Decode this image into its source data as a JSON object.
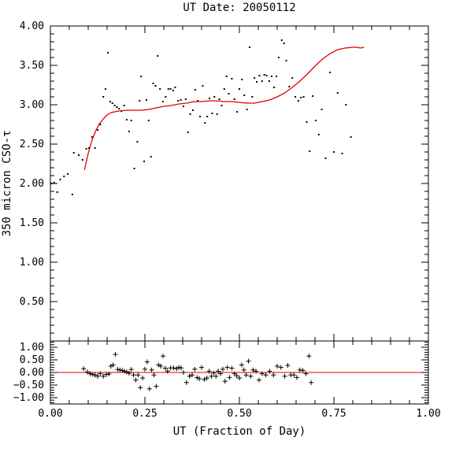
{
  "chart_data": [
    {
      "type": "scatter",
      "title": "UT Date: 20050112",
      "ylabel": "350 micron CSO-τ",
      "xlim": [
        0,
        1
      ],
      "ylim": [
        0,
        4
      ],
      "y_ticks": [
        "4.00",
        "3.50",
        "3.00",
        "2.50",
        "2.00",
        "1.50",
        "1.00",
        "0.50"
      ],
      "x_ticks": [
        "0.00",
        "0.25",
        "0.50",
        "0.75",
        "1.00"
      ],
      "grid": false,
      "points": [
        [
          0.003,
          2.0
        ],
        [
          0.01,
          2.01
        ],
        [
          0.018,
          1.89
        ],
        [
          0.026,
          2.05
        ],
        [
          0.036,
          2.09
        ],
        [
          0.046,
          2.12
        ],
        [
          0.058,
          1.86
        ],
        [
          0.062,
          2.39
        ],
        [
          0.075,
          2.36
        ],
        [
          0.085,
          2.3
        ],
        [
          0.095,
          2.44
        ],
        [
          0.102,
          2.45
        ],
        [
          0.11,
          2.59
        ],
        [
          0.118,
          2.45
        ],
        [
          0.125,
          2.68
        ],
        [
          0.132,
          2.75
        ],
        [
          0.14,
          3.1
        ],
        [
          0.146,
          3.2
        ],
        [
          0.152,
          3.66
        ],
        [
          0.158,
          3.04
        ],
        [
          0.164,
          3.02
        ],
        [
          0.17,
          2.99
        ],
        [
          0.176,
          2.97
        ],
        [
          0.182,
          2.95
        ],
        [
          0.188,
          2.92
        ],
        [
          0.195,
          2.99
        ],
        [
          0.202,
          2.81
        ],
        [
          0.208,
          2.66
        ],
        [
          0.214,
          2.8
        ],
        [
          0.222,
          2.19
        ],
        [
          0.23,
          2.53
        ],
        [
          0.236,
          3.05
        ],
        [
          0.24,
          3.36
        ],
        [
          0.248,
          2.28
        ],
        [
          0.254,
          3.06
        ],
        [
          0.26,
          2.8
        ],
        [
          0.266,
          2.34
        ],
        [
          0.272,
          3.27
        ],
        [
          0.278,
          3.24
        ],
        [
          0.284,
          3.62
        ],
        [
          0.29,
          3.2
        ],
        [
          0.298,
          3.04
        ],
        [
          0.305,
          3.1
        ],
        [
          0.312,
          3.2
        ],
        [
          0.318,
          3.2
        ],
        [
          0.325,
          3.18
        ],
        [
          0.33,
          3.22
        ],
        [
          0.338,
          3.05
        ],
        [
          0.345,
          3.06
        ],
        [
          0.352,
          2.98
        ],
        [
          0.358,
          3.07
        ],
        [
          0.364,
          2.65
        ],
        [
          0.37,
          2.88
        ],
        [
          0.377,
          2.93
        ],
        [
          0.383,
          3.19
        ],
        [
          0.39,
          3.05
        ],
        [
          0.396,
          2.85
        ],
        [
          0.403,
          3.24
        ],
        [
          0.409,
          2.77
        ],
        [
          0.415,
          2.85
        ],
        [
          0.421,
          3.08
        ],
        [
          0.428,
          2.89
        ],
        [
          0.434,
          3.1
        ],
        [
          0.441,
          2.88
        ],
        [
          0.447,
          3.07
        ],
        [
          0.453,
          2.99
        ],
        [
          0.46,
          3.2
        ],
        [
          0.466,
          3.36
        ],
        [
          0.472,
          3.14
        ],
        [
          0.48,
          3.33
        ],
        [
          0.487,
          3.07
        ],
        [
          0.494,
          2.91
        ],
        [
          0.5,
          3.2
        ],
        [
          0.507,
          3.32
        ],
        [
          0.513,
          3.12
        ],
        [
          0.52,
          2.94
        ],
        [
          0.527,
          3.73
        ],
        [
          0.534,
          3.1
        ],
        [
          0.54,
          3.34
        ],
        [
          0.546,
          3.29
        ],
        [
          0.553,
          3.37
        ],
        [
          0.56,
          3.3
        ],
        [
          0.566,
          3.38
        ],
        [
          0.572,
          3.37
        ],
        [
          0.579,
          3.3
        ],
        [
          0.585,
          3.36
        ],
        [
          0.592,
          3.22
        ],
        [
          0.598,
          3.36
        ],
        [
          0.604,
          3.6
        ],
        [
          0.612,
          3.82
        ],
        [
          0.618,
          3.78
        ],
        [
          0.624,
          3.56
        ],
        [
          0.632,
          3.23
        ],
        [
          0.64,
          3.34
        ],
        [
          0.648,
          3.1
        ],
        [
          0.656,
          3.05
        ],
        [
          0.663,
          3.09
        ],
        [
          0.67,
          3.1
        ],
        [
          0.678,
          2.78
        ],
        [
          0.686,
          2.41
        ],
        [
          0.694,
          3.11
        ],
        [
          0.702,
          2.8
        ],
        [
          0.71,
          2.62
        ],
        [
          0.718,
          2.94
        ],
        [
          0.728,
          2.32
        ],
        [
          0.74,
          3.41
        ],
        [
          0.75,
          2.4
        ],
        [
          0.76,
          3.15
        ],
        [
          0.772,
          2.38
        ],
        [
          0.782,
          3.0
        ],
        [
          0.795,
          2.59
        ]
      ],
      "fit_curve": [
        [
          0.09,
          2.17
        ],
        [
          0.1,
          2.38
        ],
        [
          0.11,
          2.55
        ],
        [
          0.12,
          2.67
        ],
        [
          0.13,
          2.76
        ],
        [
          0.14,
          2.82
        ],
        [
          0.15,
          2.87
        ],
        [
          0.16,
          2.9
        ],
        [
          0.18,
          2.92
        ],
        [
          0.2,
          2.93
        ],
        [
          0.22,
          2.93
        ],
        [
          0.24,
          2.93
        ],
        [
          0.26,
          2.94
        ],
        [
          0.28,
          2.96
        ],
        [
          0.3,
          2.98
        ],
        [
          0.32,
          2.99
        ],
        [
          0.34,
          3.01
        ],
        [
          0.36,
          3.02
        ],
        [
          0.38,
          3.04
        ],
        [
          0.4,
          3.04
        ],
        [
          0.42,
          3.05
        ],
        [
          0.44,
          3.05
        ],
        [
          0.46,
          3.04
        ],
        [
          0.48,
          3.04
        ],
        [
          0.5,
          3.03
        ],
        [
          0.52,
          3.02
        ],
        [
          0.54,
          3.02
        ],
        [
          0.56,
          3.04
        ],
        [
          0.58,
          3.06
        ],
        [
          0.6,
          3.1
        ],
        [
          0.62,
          3.15
        ],
        [
          0.64,
          3.22
        ],
        [
          0.66,
          3.3
        ],
        [
          0.68,
          3.39
        ],
        [
          0.7,
          3.49
        ],
        [
          0.72,
          3.58
        ],
        [
          0.74,
          3.65
        ],
        [
          0.76,
          3.7
        ],
        [
          0.78,
          3.72
        ],
        [
          0.8,
          3.73
        ],
        [
          0.81,
          3.73
        ],
        [
          0.82,
          3.72
        ],
        [
          0.83,
          3.73
        ]
      ],
      "fit_color": "#e00000",
      "marker": "dot"
    },
    {
      "type": "scatter",
      "panel": "residuals",
      "xlabel": "UT (Fraction of Day)",
      "xlim": [
        0,
        1
      ],
      "ylim": [
        -1.25,
        1.25
      ],
      "y_ticks": [
        "1.00",
        "0.50",
        "0.00",
        "−0.50",
        "−1.00"
      ],
      "x_ticks": [
        "0.00",
        "0.25",
        "0.50",
        "0.75",
        "1.00"
      ],
      "zero_line_color": "#e00000",
      "marker": "plus",
      "points": [
        [
          0.088,
          0.15
        ],
        [
          0.098,
          0.02
        ],
        [
          0.105,
          -0.05
        ],
        [
          0.112,
          -0.08
        ],
        [
          0.118,
          -0.1
        ],
        [
          0.125,
          -0.15
        ],
        [
          0.132,
          -0.05
        ],
        [
          0.14,
          -0.15
        ],
        [
          0.148,
          -0.08
        ],
        [
          0.155,
          -0.06
        ],
        [
          0.16,
          0.25
        ],
        [
          0.166,
          0.3
        ],
        [
          0.172,
          0.72
        ],
        [
          0.178,
          0.12
        ],
        [
          0.184,
          0.1
        ],
        [
          0.19,
          0.08
        ],
        [
          0.196,
          0.05
        ],
        [
          0.202,
          0.02
        ],
        [
          0.208,
          -0.03
        ],
        [
          0.214,
          0.12
        ],
        [
          0.22,
          -0.1
        ],
        [
          0.226,
          -0.3
        ],
        [
          0.232,
          -0.1
        ],
        [
          0.238,
          -0.6
        ],
        [
          0.244,
          -0.22
        ],
        [
          0.25,
          0.13
        ],
        [
          0.256,
          0.42
        ],
        [
          0.262,
          -0.65
        ],
        [
          0.268,
          0.1
        ],
        [
          0.274,
          -0.1
        ],
        [
          0.28,
          -0.55
        ],
        [
          0.286,
          0.3
        ],
        [
          0.292,
          0.25
        ],
        [
          0.298,
          0.65
        ],
        [
          0.304,
          0.17
        ],
        [
          0.31,
          0.05
        ],
        [
          0.318,
          0.18
        ],
        [
          0.326,
          0.18
        ],
        [
          0.334,
          0.15
        ],
        [
          0.34,
          0.2
        ],
        [
          0.346,
          0.18
        ],
        [
          0.352,
          0.0
        ],
        [
          0.36,
          -0.4
        ],
        [
          0.368,
          -0.15
        ],
        [
          0.375,
          -0.1
        ],
        [
          0.382,
          0.13
        ],
        [
          0.388,
          -0.2
        ],
        [
          0.394,
          -0.25
        ],
        [
          0.4,
          0.2
        ],
        [
          0.407,
          -0.28
        ],
        [
          0.414,
          -0.22
        ],
        [
          0.42,
          0.05
        ],
        [
          0.426,
          -0.15
        ],
        [
          0.432,
          -0.02
        ],
        [
          0.438,
          -0.15
        ],
        [
          0.444,
          0.05
        ],
        [
          0.45,
          -0.05
        ],
        [
          0.456,
          0.13
        ],
        [
          0.462,
          -0.35
        ],
        [
          0.468,
          0.2
        ],
        [
          0.474,
          -0.2
        ],
        [
          0.48,
          0.17
        ],
        [
          0.487,
          -0.05
        ],
        [
          0.493,
          -0.13
        ],
        [
          0.5,
          -0.22
        ],
        [
          0.506,
          0.3
        ],
        [
          0.512,
          0.1
        ],
        [
          0.518,
          -0.1
        ],
        [
          0.524,
          0.45
        ],
        [
          0.53,
          -0.15
        ],
        [
          0.536,
          0.1
        ],
        [
          0.544,
          0.05
        ],
        [
          0.552,
          -0.3
        ],
        [
          0.56,
          -0.05
        ],
        [
          0.57,
          -0.1
        ],
        [
          0.58,
          0.05
        ],
        [
          0.59,
          -0.1
        ],
        [
          0.6,
          0.25
        ],
        [
          0.61,
          0.2
        ],
        [
          0.62,
          -0.15
        ],
        [
          0.628,
          0.28
        ],
        [
          0.636,
          -0.1
        ],
        [
          0.644,
          -0.1
        ],
        [
          0.652,
          -0.2
        ],
        [
          0.66,
          0.1
        ],
        [
          0.668,
          0.08
        ],
        [
          0.676,
          -0.05
        ],
        [
          0.684,
          0.65
        ],
        [
          0.69,
          -0.4
        ]
      ]
    }
  ]
}
